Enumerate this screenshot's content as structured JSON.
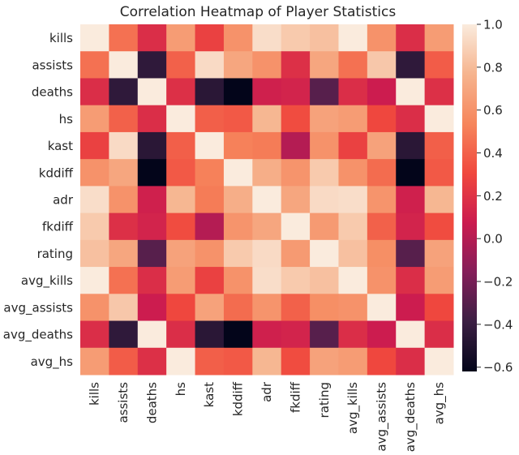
{
  "chart_data": {
    "type": "heatmap",
    "title": "Correlation Heatmap of Player Statistics",
    "xlabel": "",
    "ylabel": "",
    "variables": [
      "kills",
      "assists",
      "deaths",
      "hs",
      "kast",
      "kddiff",
      "adr",
      "fkdiff",
      "rating",
      "avg_kills",
      "avg_assists",
      "avg_deaths",
      "avg_hs"
    ],
    "matrix": [
      [
        1.0,
        0.46,
        0.17,
        0.65,
        0.27,
        0.6,
        0.94,
        0.86,
        0.82,
        1.0,
        0.6,
        0.17,
        0.65
      ],
      [
        0.46,
        1.0,
        -0.44,
        0.4,
        0.93,
        0.7,
        0.6,
        0.18,
        0.7,
        0.46,
        0.85,
        -0.44,
        0.38
      ],
      [
        0.17,
        -0.44,
        1.0,
        0.18,
        -0.46,
        -0.62,
        0.1,
        0.12,
        -0.3,
        0.17,
        0.08,
        1.0,
        0.18
      ],
      [
        0.65,
        0.4,
        0.17,
        1.0,
        0.39,
        0.37,
        0.78,
        0.32,
        0.68,
        0.65,
        0.3,
        0.17,
        1.0
      ],
      [
        0.27,
        0.93,
        -0.46,
        0.39,
        1.0,
        0.52,
        0.5,
        0.0,
        0.6,
        0.27,
        0.68,
        -0.46,
        0.39
      ],
      [
        0.6,
        0.7,
        -0.62,
        0.37,
        0.52,
        1.0,
        0.74,
        0.61,
        0.86,
        0.6,
        0.44,
        -0.62,
        0.37
      ],
      [
        0.94,
        0.6,
        0.1,
        0.78,
        0.5,
        0.74,
        1.0,
        0.7,
        0.93,
        0.94,
        0.61,
        0.1,
        0.78
      ],
      [
        0.86,
        0.18,
        0.12,
        0.32,
        0.0,
        0.61,
        0.7,
        1.0,
        0.64,
        0.86,
        0.4,
        0.12,
        0.32
      ],
      [
        0.82,
        0.7,
        -0.3,
        0.68,
        0.6,
        0.86,
        0.93,
        0.64,
        1.0,
        0.82,
        0.58,
        -0.3,
        0.68
      ],
      [
        1.0,
        0.46,
        0.17,
        0.65,
        0.27,
        0.6,
        0.94,
        0.86,
        0.82,
        1.0,
        0.6,
        0.17,
        0.65
      ],
      [
        0.6,
        0.85,
        0.08,
        0.3,
        0.68,
        0.44,
        0.61,
        0.4,
        0.58,
        0.6,
        1.0,
        0.08,
        0.3
      ],
      [
        0.17,
        -0.44,
        1.0,
        0.17,
        -0.46,
        -0.62,
        0.1,
        0.12,
        -0.3,
        0.17,
        0.08,
        1.0,
        0.17
      ],
      [
        0.65,
        0.38,
        0.18,
        1.0,
        0.39,
        0.37,
        0.78,
        0.32,
        0.68,
        0.65,
        0.3,
        0.17,
        1.0
      ]
    ],
    "colorbar": {
      "min": -0.62,
      "max": 1.0,
      "ticks": [
        1.0,
        0.8,
        0.6,
        0.4,
        0.2,
        0.0,
        -0.2,
        -0.4,
        -0.6
      ],
      "tick_labels": [
        "1.0",
        "0.8",
        "0.6",
        "0.4",
        "0.2",
        "0.0",
        "−0.2",
        "−0.4",
        "−0.6"
      ],
      "colormap": "rocket",
      "stops": [
        "#03051a",
        "#3b1f43",
        "#841e5a",
        "#cb1b4f",
        "#f0483e",
        "#f6865c",
        "#f6b48e",
        "#faebdd"
      ]
    },
    "grid": false,
    "legend": "right"
  }
}
